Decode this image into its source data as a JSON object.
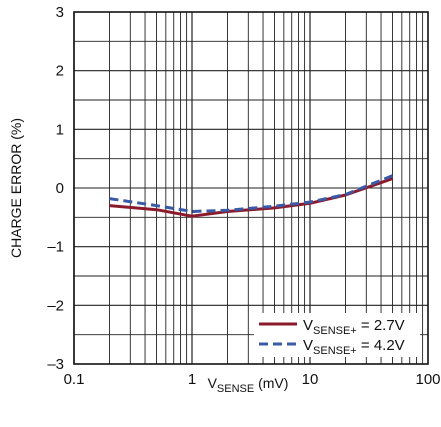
{
  "chart_data": {
    "type": "line",
    "xscale": "log",
    "xlim": [
      0.1,
      100
    ],
    "ylim": [
      -3,
      3
    ],
    "grid": true,
    "legend_position": "bottom-right",
    "xlabel": {
      "main": "V",
      "sub": "SENSE",
      "rest": " (mV)"
    },
    "ylabel": "CHARGE ERROR (%)",
    "x_ticks": [
      {
        "value": 0.1,
        "label": "0.1"
      },
      {
        "value": 1,
        "label": "1"
      },
      {
        "value": 10,
        "label": "10"
      },
      {
        "value": 100,
        "label": "100"
      }
    ],
    "y_ticks": [
      {
        "value": 3,
        "label": "3"
      },
      {
        "value": 2,
        "label": "2"
      },
      {
        "value": 1,
        "label": "1"
      },
      {
        "value": 0,
        "label": "0"
      },
      {
        "value": -1,
        "label": "–1"
      },
      {
        "value": -2,
        "label": "–2"
      },
      {
        "value": -3,
        "label": "–3"
      }
    ],
    "series": [
      {
        "legend_main": "V",
        "legend_sub": "SENSE+",
        "legend_rest": " = 2.7V",
        "color": "#8b1a2b",
        "style": "solid",
        "x": [
          0.2,
          0.5,
          1,
          2,
          5,
          10,
          20,
          50
        ],
        "y": [
          -0.3,
          -0.37,
          -0.48,
          -0.4,
          -0.34,
          -0.26,
          -0.12,
          0.16
        ]
      },
      {
        "legend_main": "V",
        "legend_sub": "SENSE+",
        "legend_rest": " = 4.2V",
        "color": "#3a5aa6",
        "style": "dashed",
        "x": [
          0.2,
          0.5,
          1,
          2,
          5,
          10,
          20,
          50
        ],
        "y": [
          -0.18,
          -0.3,
          -0.4,
          -0.38,
          -0.31,
          -0.24,
          -0.11,
          0.21
        ]
      }
    ]
  }
}
